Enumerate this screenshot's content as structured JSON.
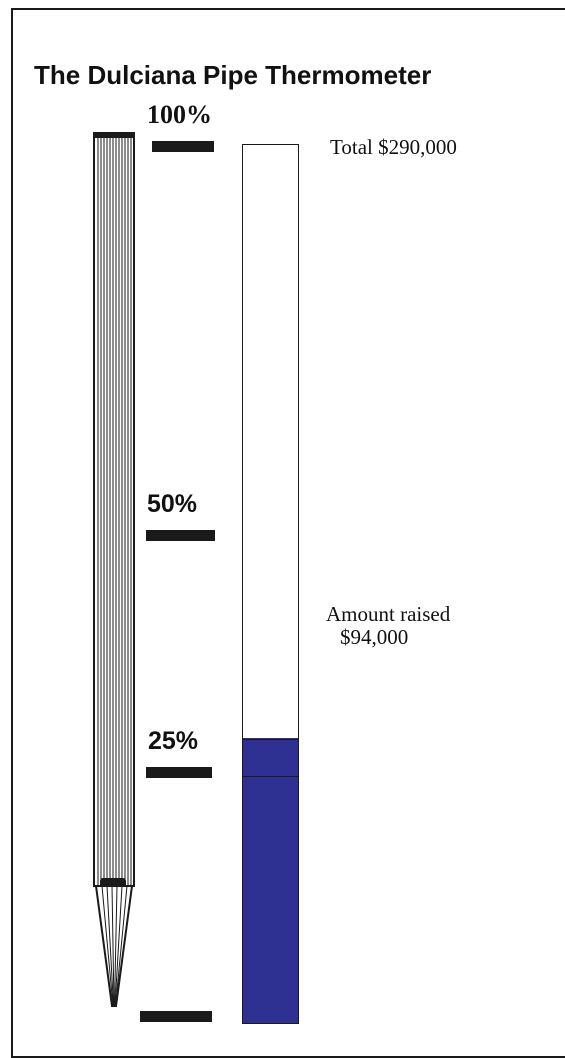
{
  "title": "The Dulciana Pipe Thermometer",
  "scale_labels": {
    "p100": "100%",
    "p50": "50%",
    "p25": "25%"
  },
  "total_label": "Total $290,000",
  "raised_label_line1": "Amount raised",
  "raised_label_line2": "$94,000",
  "colors": {
    "fill": "#2e3192",
    "ink": "#1a1a1a"
  },
  "chart_data": {
    "type": "bar",
    "title": "The Dulciana Pipe Thermometer",
    "categories": [
      "Amount raised"
    ],
    "values": [
      94000
    ],
    "goal": 290000,
    "ylim": [
      0,
      290000
    ],
    "y_tick_labels": [
      "25%",
      "50%",
      "100%"
    ]
  }
}
